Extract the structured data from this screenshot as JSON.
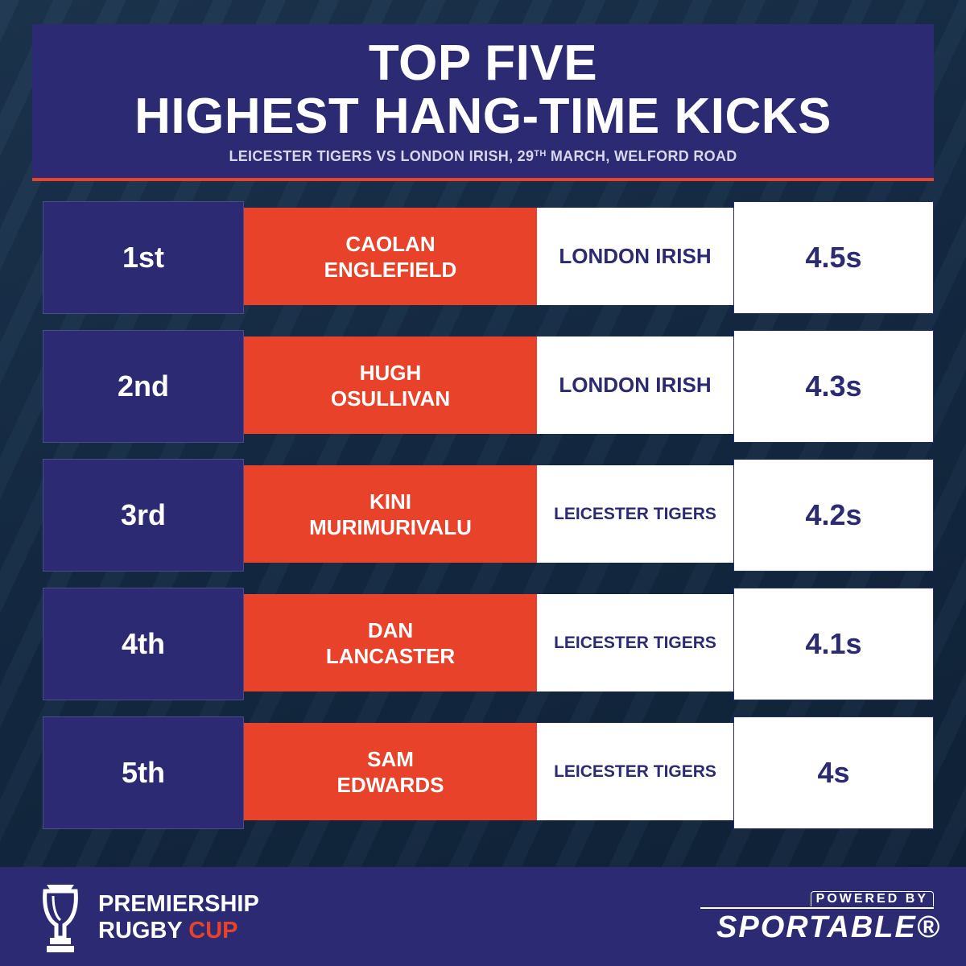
{
  "header": {
    "title_line1": "TOP FIVE",
    "title_line2": "HIGHEST HANG-TIME KICKS",
    "subtitle_before": "LEICESTER TIGERS VS LONDON IRISH, 29",
    "subtitle_sup": "TH",
    "subtitle_after": " MARCH, WELFORD ROAD"
  },
  "rows": [
    {
      "rank": "1st",
      "first": "CAOLAN",
      "last": "ENGLEFIELD",
      "team": "LONDON IRISH",
      "time": "4.5s"
    },
    {
      "rank": "2nd",
      "first": "HUGH",
      "last": "OSULLIVAN",
      "team": "LONDON IRISH",
      "time": "4.3s"
    },
    {
      "rank": "3rd",
      "first": "KINI",
      "last": "MURIMURIVALU",
      "team": "LEICESTER TIGERS",
      "time": "4.2s"
    },
    {
      "rank": "4th",
      "first": "DAN",
      "last": "LANCASTER",
      "team": "LEICESTER TIGERS",
      "time": "4.1s"
    },
    {
      "rank": "5th",
      "first": "SAM",
      "last": "EDWARDS",
      "team": "LEICESTER TIGERS",
      "time": "4s"
    }
  ],
  "footer": {
    "brand_line1": "PREMIERSHIP",
    "brand_line2_a": "RUGBY",
    "brand_line2_b": "CUP",
    "sponsor_top": "POWERED BY",
    "sponsor_name": "SPORTABLE®"
  },
  "colors": {
    "navy": "#2c2a72",
    "red": "#e8432a",
    "background": "#142a44"
  },
  "icons": {
    "cup_logo": "trophy-icon"
  }
}
